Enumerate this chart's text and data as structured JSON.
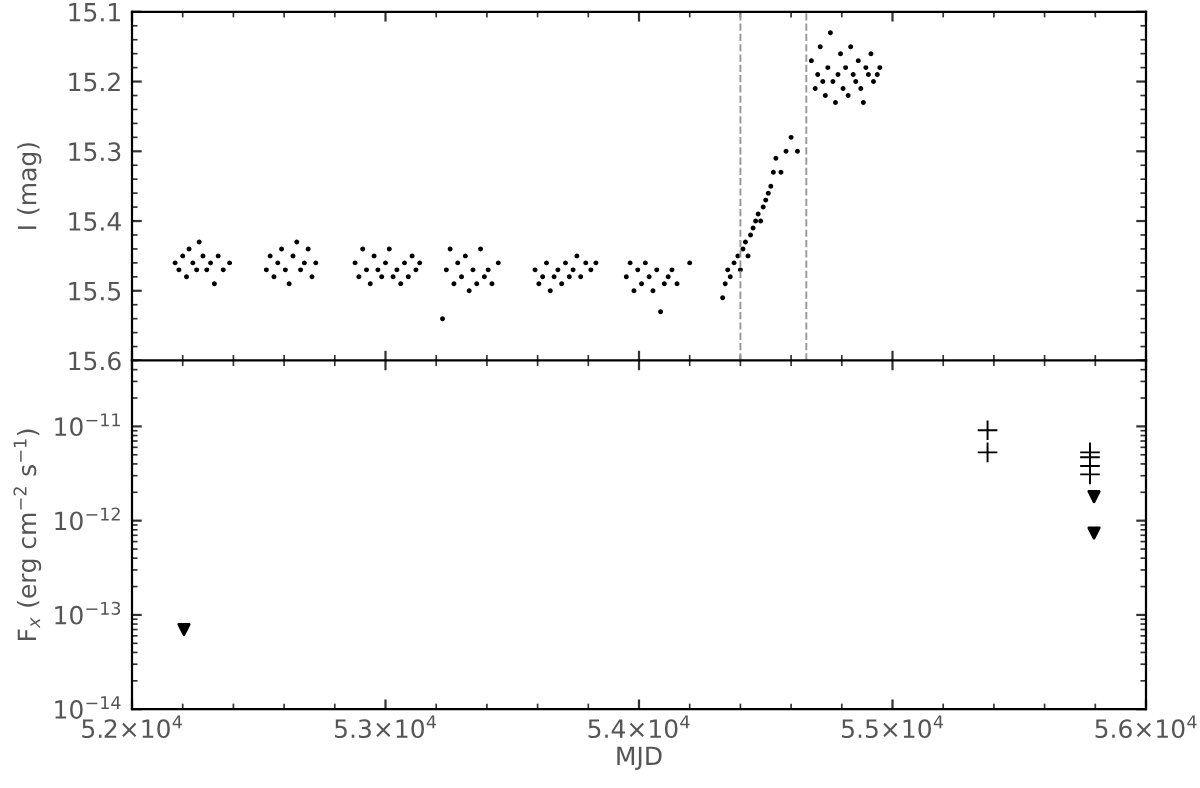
{
  "chart_data": [
    {
      "type": "scatter",
      "ylabel": "I (mag)",
      "xlim": [
        52000,
        56000
      ],
      "xticks": [
        {
          "value": 52000,
          "label": null
        },
        {
          "value": 53000,
          "label": null
        },
        {
          "value": 54000,
          "label": null
        },
        {
          "value": 55000,
          "label": null
        },
        {
          "value": 56000,
          "label": null
        }
      ],
      "ylim": [
        15.6,
        15.1
      ],
      "yticks": [
        {
          "value": 15.1,
          "label": "15.1"
        },
        {
          "value": 15.2,
          "label": "15.2"
        },
        {
          "value": 15.3,
          "label": "15.3"
        },
        {
          "value": 15.4,
          "label": "15.4"
        },
        {
          "value": 15.5,
          "label": "15.5"
        },
        {
          "value": 15.6,
          "label": "15.6"
        }
      ],
      "tick_labels": "y",
      "grid": false,
      "marker": "circle",
      "ref_lines": [
        {
          "axis": "x",
          "value": 54400,
          "color": "#999999",
          "line_style": "dashed"
        },
        {
          "axis": "x",
          "value": 54660,
          "color": "#999999",
          "line_style": "dashed"
        }
      ],
      "series": [
        {
          "color": "#000000",
          "x": [
            52170,
            52185,
            52200,
            52215,
            52225,
            52240,
            52255,
            52265,
            52280,
            52295,
            52310,
            52325,
            52340,
            52360,
            52385,
            52530,
            52545,
            52560,
            52575,
            52590,
            52605,
            52620,
            52635,
            52650,
            52665,
            52680,
            52695,
            52710,
            52725,
            52880,
            52895,
            52910,
            52925,
            52940,
            52955,
            52970,
            52985,
            53000,
            53015,
            53030,
            53045,
            53060,
            53075,
            53090,
            53105,
            53120,
            53135,
            53225,
            53240,
            53255,
            53270,
            53285,
            53300,
            53315,
            53330,
            53345,
            53360,
            53375,
            53390,
            53405,
            53420,
            53445,
            53590,
            53605,
            53620,
            53635,
            53650,
            53665,
            53680,
            53695,
            53710,
            53725,
            53740,
            53755,
            53770,
            53790,
            53810,
            53830,
            53950,
            53965,
            53980,
            53995,
            54010,
            54025,
            54040,
            54055,
            54070,
            54085,
            54100,
            54115,
            54130,
            54150,
            54200,
            54330,
            54340,
            54350,
            54360,
            54375,
            54390,
            54400,
            54410,
            54420,
            54430,
            54440,
            54450,
            54460,
            54470,
            54480,
            54490,
            54500,
            54510,
            54520,
            54530,
            54540,
            54560,
            54580,
            54600,
            54625,
            54680,
            54695,
            54705,
            54715,
            54725,
            54735,
            54745,
            54755,
            54765,
            54775,
            54785,
            54795,
            54805,
            54815,
            54825,
            54835,
            54845,
            54855,
            54865,
            54875,
            54885,
            54895,
            54905,
            54915,
            54925,
            54940,
            54950
          ],
          "values": [
            15.46,
            15.47,
            15.45,
            15.48,
            15.44,
            15.46,
            15.47,
            15.43,
            15.45,
            15.47,
            15.46,
            15.49,
            15.45,
            15.47,
            15.46,
            15.47,
            15.45,
            15.48,
            15.46,
            15.44,
            15.47,
            15.49,
            15.45,
            15.43,
            15.47,
            15.46,
            15.44,
            15.48,
            15.46,
            15.46,
            15.48,
            15.44,
            15.47,
            15.49,
            15.45,
            15.47,
            15.48,
            15.46,
            15.44,
            15.48,
            15.47,
            15.49,
            15.46,
            15.48,
            15.45,
            15.47,
            15.46,
            15.54,
            15.47,
            15.44,
            15.49,
            15.46,
            15.48,
            15.45,
            15.5,
            15.47,
            15.49,
            15.44,
            15.48,
            15.47,
            15.49,
            15.46,
            15.47,
            15.49,
            15.48,
            15.46,
            15.5,
            15.48,
            15.47,
            15.49,
            15.46,
            15.48,
            15.47,
            15.45,
            15.48,
            15.46,
            15.47,
            15.46,
            15.48,
            15.46,
            15.5,
            15.47,
            15.49,
            15.46,
            15.48,
            15.5,
            15.47,
            15.53,
            15.49,
            15.48,
            15.47,
            15.49,
            15.46,
            15.51,
            15.49,
            15.47,
            15.48,
            15.46,
            15.45,
            15.47,
            15.44,
            15.43,
            15.45,
            15.42,
            15.41,
            15.4,
            15.39,
            15.4,
            15.38,
            15.37,
            15.36,
            15.35,
            15.33,
            15.31,
            15.33,
            15.3,
            15.28,
            15.3,
            15.17,
            15.21,
            15.19,
            15.15,
            15.2,
            15.22,
            15.18,
            15.13,
            15.2,
            15.23,
            15.19,
            15.16,
            15.21,
            15.18,
            15.22,
            15.15,
            15.19,
            15.2,
            15.17,
            15.21,
            15.23,
            15.18,
            15.19,
            15.16,
            15.2,
            15.19,
            15.18
          ]
        }
      ]
    },
    {
      "type": "scatter",
      "xlabel": "MJD",
      "ylabel": "F$_{x}$ (erg cm$^{−2}$ s$^{−1}$)",
      "log": "y",
      "xlim": [
        52000,
        56000
      ],
      "xticks": [
        {
          "value": 52000,
          "label": "5.2×10$^{4}$"
        },
        {
          "value": 53000,
          "label": "5.3×10$^{4}$"
        },
        {
          "value": 54000,
          "label": "5.4×10$^{4}$"
        },
        {
          "value": 55000,
          "label": "5.5×10$^{4}$"
        },
        {
          "value": 56000,
          "label": "5.6×10$^{4}$"
        }
      ],
      "ylim": [
        1e-14,
        5e-11
      ],
      "yticks": [
        {
          "value": 1e-14,
          "label": "10$^{−14}$"
        },
        {
          "value": 1e-13,
          "label": "10$^{−13}$"
        },
        {
          "value": 1e-12,
          "label": "10$^{−12}$"
        },
        {
          "value": 1e-11,
          "label": "10$^{−11}$"
        }
      ],
      "grid": false,
      "series": [
        {
          "color": "#000000",
          "marker": "cross",
          "x": [
            55375,
            55375,
            55779,
            55779,
            55779,
            55779
          ],
          "values": [
            9.1e-12,
            5.3e-12,
            5.3e-12,
            4.7e-12,
            3.8e-12,
            3.1e-12
          ]
        },
        {
          "color": "#000000",
          "marker": "triangle",
          "x": [
            52205,
            55795,
            55795
          ],
          "values": [
            7e-14,
            1.8e-12,
            7.4e-13
          ]
        }
      ]
    }
  ]
}
